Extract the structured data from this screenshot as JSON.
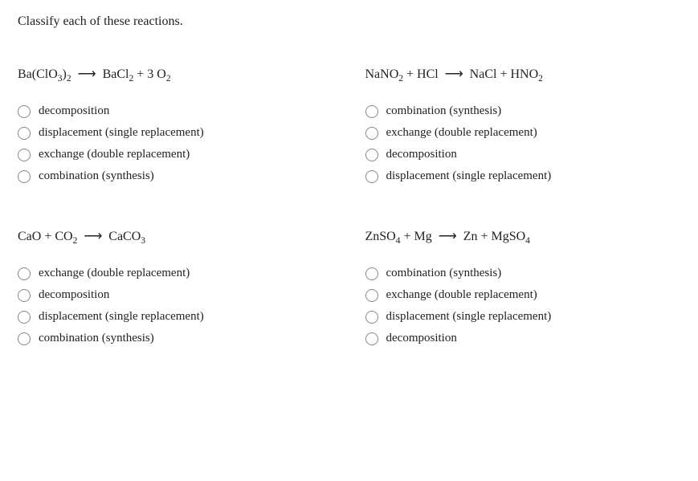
{
  "prompt": "Classify each of these reactions.",
  "questions": [
    {
      "equation_html": "Ba(ClO<sub>3</sub>)<sub>2</sub> <span class='arrow'>⟶</span> BaCl<sub>2</sub> + 3 O<sub>2</sub>",
      "options": [
        "decomposition",
        "displacement (single replacement)",
        "exchange (double replacement)",
        "combination (synthesis)"
      ]
    },
    {
      "equation_html": "NaNO<sub>2</sub> + HCl <span class='arrow'>⟶</span> NaCl + HNO<sub>2</sub>",
      "options": [
        "combination (synthesis)",
        "exchange (double replacement)",
        "decomposition",
        "displacement (single replacement)"
      ]
    },
    {
      "equation_html": "CaO + CO<sub>2</sub> <span class='arrow'>⟶</span> CaCO<sub>3</sub>",
      "options": [
        "exchange (double replacement)",
        "decomposition",
        "displacement (single replacement)",
        "combination (synthesis)"
      ]
    },
    {
      "equation_html": "ZnSO<sub>4</sub> + Mg <span class='arrow'>⟶</span> Zn + MgSO<sub>4</sub>",
      "options": [
        "combination (synthesis)",
        "exchange (double replacement)",
        "displacement (single replacement)",
        "decomposition"
      ]
    }
  ],
  "colors": {
    "text": "#222222",
    "radio_border": "#888888",
    "background": "#ffffff"
  }
}
